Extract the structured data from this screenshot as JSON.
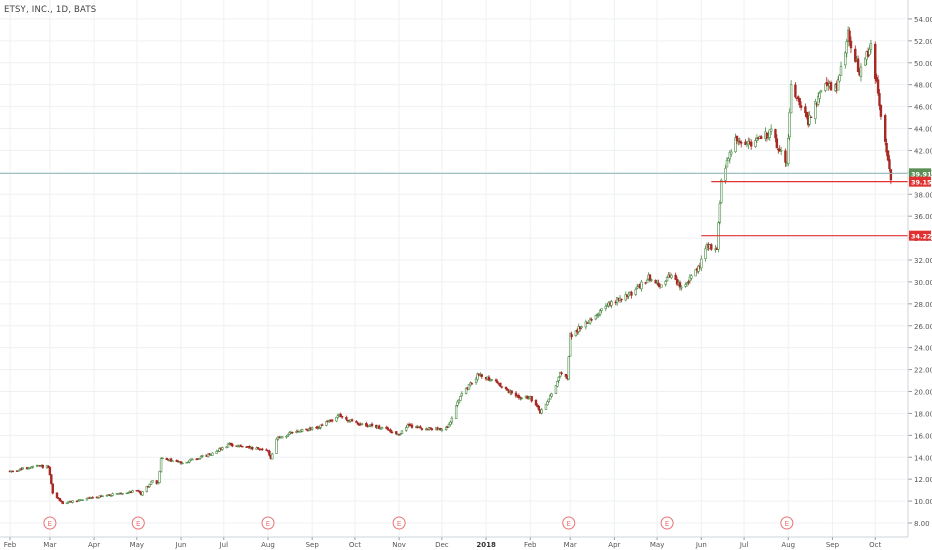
{
  "symbol_title": "ETSY, INC., 1D, BATS",
  "colors": {
    "up": "#4a8a44",
    "down": "#a62823",
    "up_fill": "#ffffff",
    "grid": "#eef1f4",
    "axis_text": "#555555",
    "resistance_line": "#e03030",
    "current_line": "#8fb8b4",
    "earnings_marker": "#e87272",
    "price_badge_green": "#5b8f56",
    "price_badge_red": "#e03030"
  },
  "chart_data": {
    "type": "candlestick",
    "title": "ETSY, INC., 1D, BATS",
    "y_axis": {
      "ylim": [
        7,
        55
      ],
      "ticks": [
        "8.00",
        "10.00",
        "12.00",
        "14.00",
        "16.00",
        "18.00",
        "20.00",
        "22.00",
        "24.00",
        "26.00",
        "28.00",
        "30.00",
        "32.00",
        "34.00",
        "36.00",
        "38.00",
        "40.00",
        "42.00",
        "44.00",
        "46.00",
        "48.00",
        "50.00",
        "52.00",
        "54.00"
      ]
    },
    "x_axis": {
      "ticks": [
        "Feb",
        "Mar",
        "Apr",
        "May",
        "Jun",
        "Jul",
        "Aug",
        "Sep",
        "Oct",
        "Nov",
        "Dec",
        "2018",
        "Feb",
        "Mar",
        "Apr",
        "May",
        "Jun",
        "Jul",
        "Aug",
        "Sep",
        "Oct"
      ]
    },
    "price_path": [
      [
        "2017-02-01",
        12.7
      ],
      [
        "2017-02-20",
        13.2
      ],
      [
        "2017-02-28",
        13.1
      ],
      [
        "2017-03-03",
        10.7
      ],
      [
        "2017-03-10",
        9.8
      ],
      [
        "2017-04-03",
        10.4
      ],
      [
        "2017-04-20",
        10.7
      ],
      [
        "2017-05-02",
        11.0
      ],
      [
        "2017-05-04",
        10.6
      ],
      [
        "2017-05-08",
        11.3
      ],
      [
        "2017-05-12",
        11.8
      ],
      [
        "2017-05-16",
        11.6
      ],
      [
        "2017-05-18",
        13.9
      ],
      [
        "2017-06-01",
        13.5
      ],
      [
        "2017-06-20",
        14.2
      ],
      [
        "2017-07-05",
        15.2
      ],
      [
        "2017-07-20",
        14.8
      ],
      [
        "2017-08-01",
        14.6
      ],
      [
        "2017-08-03",
        13.9
      ],
      [
        "2017-08-07",
        15.7
      ],
      [
        "2017-08-20",
        16.3
      ],
      [
        "2017-09-05",
        16.7
      ],
      [
        "2017-09-20",
        17.8
      ],
      [
        "2017-10-01",
        17.1
      ],
      [
        "2017-10-20",
        16.7
      ],
      [
        "2017-11-01",
        16.1
      ],
      [
        "2017-11-07",
        16.9
      ],
      [
        "2017-11-20",
        16.6
      ],
      [
        "2017-12-05",
        16.6
      ],
      [
        "2017-12-12",
        19.2
      ],
      [
        "2017-12-27",
        21.6
      ],
      [
        "2018-01-08",
        20.9
      ],
      [
        "2018-01-15",
        20.1
      ],
      [
        "2018-01-22",
        19.6
      ],
      [
        "2018-02-01",
        19.4
      ],
      [
        "2018-02-08",
        18.1
      ],
      [
        "2018-02-15",
        19.5
      ],
      [
        "2018-02-22",
        21.6
      ],
      [
        "2018-02-27",
        21.3
      ],
      [
        "2018-03-01",
        25.1
      ],
      [
        "2018-03-15",
        26.6
      ],
      [
        "2018-03-30",
        28.1
      ],
      [
        "2018-04-15",
        29.1
      ],
      [
        "2018-04-25",
        30.4
      ],
      [
        "2018-05-05",
        29.6
      ],
      [
        "2018-05-10",
        30.6
      ],
      [
        "2018-05-18",
        29.4
      ],
      [
        "2018-05-30",
        31.2
      ],
      [
        "2018-06-05",
        33.4
      ],
      [
        "2018-06-12",
        32.9
      ],
      [
        "2018-06-15",
        39.6
      ],
      [
        "2018-06-25",
        43.1
      ],
      [
        "2018-07-05",
        42.6
      ],
      [
        "2018-07-20",
        43.6
      ],
      [
        "2018-07-31",
        40.8
      ],
      [
        "2018-08-03",
        48.1
      ],
      [
        "2018-08-15",
        44.6
      ],
      [
        "2018-08-25",
        47.6
      ],
      [
        "2018-09-05",
        48.1
      ],
      [
        "2018-09-12",
        52.6
      ],
      [
        "2018-09-20",
        49.1
      ],
      [
        "2018-09-28",
        51.6
      ],
      [
        "2018-10-03",
        47.1
      ],
      [
        "2018-10-08",
        42.6
      ],
      [
        "2018-10-12",
        39.2
      ]
    ],
    "earnings_markers": [
      "2017-03-01",
      "2017-05-02",
      "2017-08-01",
      "2017-11-01",
      "2018-02-28",
      "2018-05-08",
      "2018-07-31"
    ],
    "horizontal_lines": [
      {
        "price": 39.15,
        "label": "39.15",
        "start": "2018-06-08"
      },
      {
        "price": 34.22,
        "label": "34.22",
        "start": "2018-06-01"
      }
    ],
    "current_price": {
      "price": 39.91,
      "label": "39.91"
    }
  }
}
